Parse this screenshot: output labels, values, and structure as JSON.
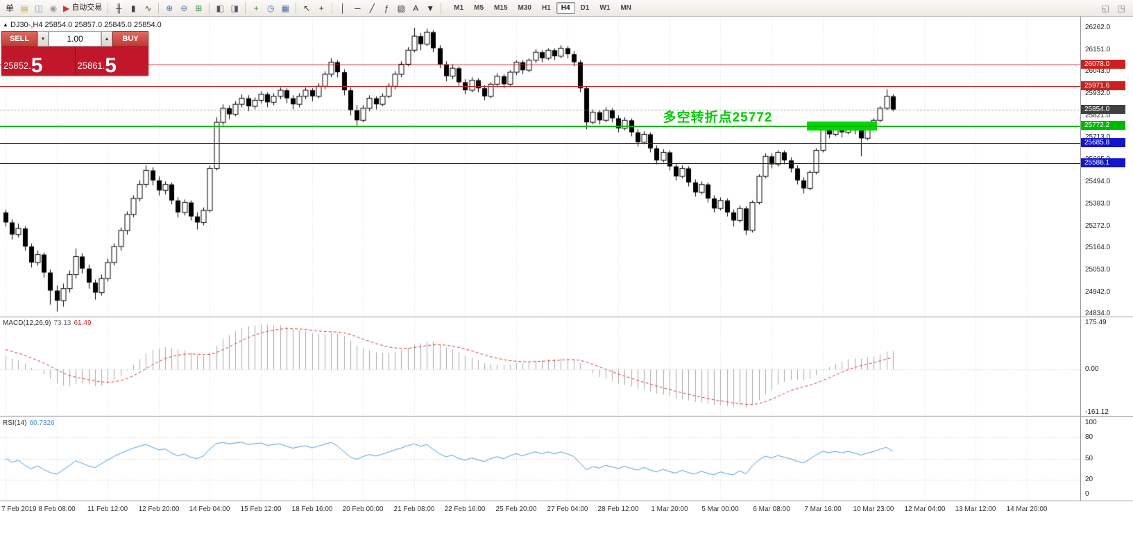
{
  "toolbar": {
    "icons": [
      {
        "name": "new-order-button",
        "glyph": "单",
        "color": "#222"
      },
      {
        "name": "layers-icon",
        "glyph": "▤",
        "color": "#caa53d"
      },
      {
        "name": "profile-icon",
        "glyph": "◫",
        "color": "#6a8fc7"
      },
      {
        "name": "info-icon",
        "glyph": "◉",
        "color": "#9a9a9a"
      },
      {
        "name": "autotrading-button",
        "glyph": "▶",
        "color": "#d03333",
        "label": "自动交易"
      },
      {
        "sep": true
      },
      {
        "name": "bars-chart-icon",
        "glyph": "╫",
        "color": "#444"
      },
      {
        "name": "candles-chart-icon",
        "glyph": "▮",
        "color": "#444"
      },
      {
        "name": "line-chart-icon",
        "glyph": "∿",
        "color": "#444"
      },
      {
        "sep": true
      },
      {
        "name": "zoom-in-icon",
        "glyph": "⊕",
        "color": "#4a6fa5"
      },
      {
        "name": "zoom-out-icon",
        "glyph": "⊖",
        "color": "#4a6fa5"
      },
      {
        "name": "tile-windows-icon",
        "glyph": "⊞",
        "color": "#3f8f3f"
      },
      {
        "sep": true
      },
      {
        "name": "cascade-windows-icon",
        "glyph": "◧",
        "color": "#556"
      },
      {
        "name": "tile-horizontal-icon",
        "glyph": "◨",
        "color": "#556"
      },
      {
        "sep": true
      },
      {
        "name": "new-chart-icon",
        "glyph": "+",
        "color": "#2f8f2f"
      },
      {
        "name": "refresh-icon",
        "glyph": "◷",
        "color": "#4a6fa5"
      },
      {
        "name": "chart-settings-icon",
        "glyph": "▦",
        "color": "#4a6fa5"
      },
      {
        "sep": true
      },
      {
        "name": "cursor-icon",
        "glyph": "↖",
        "color": "#333"
      },
      {
        "name": "crosshair-icon",
        "glyph": "+",
        "color": "#333"
      },
      {
        "sep": true
      },
      {
        "name": "vertical-line-icon",
        "glyph": "│",
        "color": "#333"
      },
      {
        "name": "horizontal-line-icon",
        "glyph": "─",
        "color": "#333"
      },
      {
        "name": "trendline-icon",
        "glyph": "╱",
        "color": "#333"
      },
      {
        "name": "fibonacci-icon",
        "glyph": "ƒ",
        "color": "#333"
      },
      {
        "name": "shapes-icon",
        "glyph": "▧",
        "color": "#333"
      },
      {
        "name": "text-tool-icon",
        "glyph": "A",
        "color": "#333"
      },
      {
        "name": "arrow-tool-icon",
        "glyph": "▼",
        "color": "#333"
      },
      {
        "sep": true
      }
    ],
    "timeframes": [
      "M1",
      "M5",
      "M15",
      "M30",
      "H1",
      "H4",
      "D1",
      "W1",
      "MN"
    ],
    "active_timeframe": "H4",
    "right_icons": [
      {
        "name": "restore-window-icon",
        "glyph": "◱",
        "color": "#777"
      },
      {
        "name": "new-window-icon",
        "glyph": "◳",
        "color": "#777"
      }
    ]
  },
  "chart": {
    "title": "DJ30-,H4 25854.0 25857.0 25845.0 25854.0"
  },
  "trade_panel": {
    "sell_label": "SELL",
    "buy_label": "BUY",
    "volume": "1.00",
    "spin_down": "▼",
    "spin_up": "▲",
    "sell_price_main": "25852.",
    "sell_price_big": "5",
    "buy_price_main": "25861.",
    "buy_price_big": "5"
  },
  "indicators": {
    "macd": {
      "name": "MACD(12,26,9)",
      "value_main": "73.13",
      "value_signal": "61.49"
    },
    "rsi": {
      "name": "RSI(14)",
      "value": "60.7326"
    }
  },
  "annotation": {
    "text": "多空转折点25772",
    "color": "#00cc00"
  },
  "chart_data": {
    "type": "candlestick",
    "symbol": "DJ30-",
    "timeframe": "H4",
    "current_ohlc": {
      "open": 25854.0,
      "high": 25857.0,
      "low": 25845.0,
      "close": 25854.0
    },
    "price_axis": {
      "min": 24834.0,
      "max": 26262.0,
      "ticks": [
        26262.0,
        26151.0,
        26043.0,
        25932.0,
        25821.0,
        25713.0,
        25605.0,
        25494.0,
        25383.0,
        25272.0,
        25164.0,
        25053.0,
        24942.0,
        24834.0
      ]
    },
    "lines": [
      {
        "price": 26078.0,
        "label": "26078.0",
        "color": "#cc2020",
        "kind": "resistance"
      },
      {
        "price": 25971.6,
        "label": "25971.6",
        "color": "#cc2020",
        "kind": "resistance"
      },
      {
        "price": 25854.0,
        "label": "25854.0",
        "color": "#404040",
        "kind": "current",
        "style": "dotted"
      },
      {
        "price": 25772.2,
        "label": "25772.2",
        "color": "#00b800",
        "kind": "pivot"
      },
      {
        "price": 25685.8,
        "label": "25685.8",
        "color": "#1414cc",
        "kind": "support"
      },
      {
        "price": 25586.1,
        "label": "25586.1",
        "color": "#1414cc",
        "kind": "support"
      }
    ],
    "green_box": {
      "from_candle": 126,
      "to_candle": 136.5,
      "top_price": 25794,
      "bottom_price": 25750,
      "color": "#00d800"
    },
    "annotation_anchor": {
      "candle": 103,
      "price": 25868
    },
    "time_labels": [
      "7 Feb 2019",
      "8 Feb 08:00",
      "11 Feb 12:00",
      "12 Feb 20:00",
      "14 Feb 04:00",
      "15 Feb 12:00",
      "18 Feb 16:00",
      "20 Feb 00:00",
      "21 Feb 08:00",
      "22 Feb 16:00",
      "25 Feb 20:00",
      "27 Feb 04:00",
      "28 Feb 12:00",
      "1 Mar 20:00",
      "5 Mar 00:00",
      "6 Mar 08:00",
      "7 Mar 16:00",
      "10 Mar 23:00",
      "12 Mar 04:00",
      "13 Mar 12:00",
      "14 Mar 20:00"
    ],
    "macd_axis": {
      "max": 175.49,
      "zero": 0.0,
      "min": -161.12,
      "labels": [
        "175.49",
        "0.00",
        "-161.12"
      ]
    },
    "rsi_axis": {
      "labels": [
        "100",
        "80",
        "50",
        "20",
        "0"
      ],
      "values": [
        100,
        80,
        50,
        20,
        0
      ],
      "levels": [
        80,
        50,
        20
      ]
    },
    "candles": [
      [
        25340,
        25355,
        25270,
        25290
      ],
      [
        25290,
        25305,
        25205,
        25230
      ],
      [
        25230,
        25285,
        25215,
        25260
      ],
      [
        25260,
        25270,
        25150,
        25170
      ],
      [
        25170,
        25185,
        25065,
        25090
      ],
      [
        25090,
        25150,
        25075,
        25130
      ],
      [
        25130,
        25140,
        25015,
        25040
      ],
      [
        25040,
        25055,
        24880,
        24950
      ],
      [
        24950,
        24975,
        24845,
        24900
      ],
      [
        24900,
        24985,
        24870,
        24960
      ],
      [
        24960,
        25050,
        24940,
        25030
      ],
      [
        25030,
        25160,
        25010,
        25120
      ],
      [
        25120,
        25135,
        25035,
        25060
      ],
      [
        25060,
        25080,
        24960,
        24990
      ],
      [
        24990,
        25005,
        24905,
        24940
      ],
      [
        24940,
        25030,
        24925,
        25010
      ],
      [
        25010,
        25110,
        24995,
        25090
      ],
      [
        25090,
        25185,
        25075,
        25170
      ],
      [
        25170,
        25265,
        25150,
        25250
      ],
      [
        25250,
        25345,
        25230,
        25330
      ],
      [
        25330,
        25425,
        25315,
        25410
      ],
      [
        25410,
        25500,
        25395,
        25480
      ],
      [
        25480,
        25575,
        25465,
        25550
      ],
      [
        25550,
        25565,
        25475,
        25500
      ],
      [
        25500,
        25520,
        25425,
        25450
      ],
      [
        25450,
        25495,
        25430,
        25480
      ],
      [
        25480,
        25490,
        25380,
        25400
      ],
      [
        25400,
        25415,
        25315,
        25340
      ],
      [
        25340,
        25405,
        25325,
        25390
      ],
      [
        25390,
        25400,
        25300,
        25320
      ],
      [
        25320,
        25340,
        25255,
        25290
      ],
      [
        25290,
        25365,
        25275,
        25350
      ],
      [
        25350,
        25575,
        25340,
        25560
      ],
      [
        25560,
        25815,
        25550,
        25790
      ],
      [
        25790,
        25880,
        25775,
        25860
      ],
      [
        25860,
        25875,
        25805,
        25830
      ],
      [
        25830,
        25895,
        25820,
        25880
      ],
      [
        25880,
        25930,
        25865,
        25910
      ],
      [
        25910,
        25925,
        25845,
        25870
      ],
      [
        25870,
        25915,
        25855,
        25900
      ],
      [
        25900,
        25945,
        25885,
        25930
      ],
      [
        25930,
        25940,
        25865,
        25890
      ],
      [
        25890,
        25935,
        25875,
        25920
      ],
      [
        25920,
        25965,
        25905,
        25950
      ],
      [
        25950,
        25960,
        25885,
        25910
      ],
      [
        25910,
        25925,
        25855,
        25880
      ],
      [
        25880,
        25935,
        25865,
        25920
      ],
      [
        25920,
        25965,
        25905,
        25950
      ],
      [
        25950,
        25960,
        25895,
        25920
      ],
      [
        25920,
        25985,
        25910,
        25970
      ],
      [
        25970,
        26045,
        25955,
        26030
      ],
      [
        26030,
        26110,
        26015,
        26090
      ],
      [
        26090,
        26100,
        26015,
        26040
      ],
      [
        26040,
        26055,
        25925,
        25950
      ],
      [
        25950,
        25965,
        25825,
        25850
      ],
      [
        25850,
        25875,
        25775,
        25800
      ],
      [
        25800,
        25875,
        25790,
        25860
      ],
      [
        25860,
        25925,
        25845,
        25910
      ],
      [
        25910,
        25920,
        25855,
        25880
      ],
      [
        25880,
        25935,
        25870,
        25920
      ],
      [
        25920,
        25985,
        25910,
        25970
      ],
      [
        25970,
        26045,
        25955,
        26030
      ],
      [
        26030,
        26095,
        26015,
        26080
      ],
      [
        26080,
        26165,
        26070,
        26150
      ],
      [
        26150,
        26262,
        26140,
        26220
      ],
      [
        26220,
        26235,
        26150,
        26180
      ],
      [
        26180,
        26258,
        26170,
        26240
      ],
      [
        26240,
        26250,
        26140,
        26160
      ],
      [
        26160,
        26175,
        26060,
        26080
      ],
      [
        26080,
        26095,
        25995,
        26020
      ],
      [
        26020,
        26080,
        26005,
        26060
      ],
      [
        26060,
        26070,
        25970,
        25990
      ],
      [
        25990,
        26005,
        25930,
        25950
      ],
      [
        25950,
        26015,
        25940,
        26000
      ],
      [
        26000,
        26010,
        25940,
        25960
      ],
      [
        25960,
        25975,
        25900,
        25920
      ],
      [
        25920,
        25990,
        25910,
        25980
      ],
      [
        25980,
        26035,
        25965,
        26020
      ],
      [
        26020,
        26030,
        25960,
        25980
      ],
      [
        25980,
        26050,
        25970,
        26040
      ],
      [
        26040,
        26100,
        26025,
        26090
      ],
      [
        26090,
        26100,
        26030,
        26050
      ],
      [
        26050,
        26110,
        26040,
        26100
      ],
      [
        26100,
        26155,
        26085,
        26140
      ],
      [
        26140,
        26150,
        26090,
        26110
      ],
      [
        26110,
        26160,
        26100,
        26150
      ],
      [
        26150,
        26160,
        26100,
        26120
      ],
      [
        26120,
        26175,
        26110,
        26160
      ],
      [
        26160,
        26170,
        26110,
        26130
      ],
      [
        26130,
        26145,
        26070,
        26090
      ],
      [
        26090,
        26100,
        25940,
        25960
      ],
      [
        25960,
        25970,
        25755,
        25790
      ],
      [
        25790,
        25855,
        25780,
        25840
      ],
      [
        25840,
        25850,
        25780,
        25800
      ],
      [
        25800,
        25865,
        25790,
        25850
      ],
      [
        25850,
        25860,
        25790,
        25810
      ],
      [
        25810,
        25825,
        25740,
        25760
      ],
      [
        25760,
        25815,
        25750,
        25800
      ],
      [
        25800,
        25810,
        25720,
        25740
      ],
      [
        25740,
        25755,
        25670,
        25690
      ],
      [
        25690,
        25745,
        25680,
        25730
      ],
      [
        25730,
        25740,
        25640,
        25660
      ],
      [
        25660,
        25675,
        25580,
        25600
      ],
      [
        25600,
        25655,
        25590,
        25640
      ],
      [
        25640,
        25650,
        25550,
        25570
      ],
      [
        25570,
        25585,
        25500,
        25520
      ],
      [
        25520,
        25575,
        25510,
        25560
      ],
      [
        25560,
        25570,
        25470,
        25490
      ],
      [
        25490,
        25505,
        25420,
        25440
      ],
      [
        25440,
        25495,
        25430,
        25480
      ],
      [
        25480,
        25490,
        25390,
        25410
      ],
      [
        25410,
        25425,
        25340,
        25360
      ],
      [
        25360,
        25415,
        25350,
        25400
      ],
      [
        25400,
        25410,
        25320,
        25340
      ],
      [
        25340,
        25355,
        25270,
        25300
      ],
      [
        25300,
        25375,
        25290,
        25360
      ],
      [
        25360,
        25370,
        25228,
        25250
      ],
      [
        25250,
        25400,
        25240,
        25390
      ],
      [
        25390,
        25530,
        25380,
        25520
      ],
      [
        25520,
        25635,
        25510,
        25620
      ],
      [
        25620,
        25635,
        25560,
        25580
      ],
      [
        25580,
        25650,
        25570,
        25640
      ],
      [
        25640,
        25650,
        25580,
        25600
      ],
      [
        25600,
        25615,
        25540,
        25560
      ],
      [
        25560,
        25575,
        25480,
        25500
      ],
      [
        25500,
        25515,
        25435,
        25460
      ],
      [
        25460,
        25550,
        25450,
        25540
      ],
      [
        25540,
        25660,
        25530,
        25650
      ],
      [
        25650,
        25770,
        25640,
        25760
      ],
      [
        25760,
        25775,
        25710,
        25730
      ],
      [
        25730,
        25785,
        25720,
        25770
      ],
      [
        25770,
        25780,
        25715,
        25740
      ],
      [
        25740,
        25790,
        25730,
        25780
      ],
      [
        25780,
        25790,
        25730,
        25750
      ],
      [
        25750,
        25765,
        25620,
        25710
      ],
      [
        25710,
        25770,
        25700,
        25760
      ],
      [
        25760,
        25810,
        25750,
        25800
      ],
      [
        25800,
        25870,
        25790,
        25860
      ],
      [
        25860,
        25955,
        25850,
        25920
      ],
      [
        25920,
        25930,
        25845,
        25854
      ]
    ]
  }
}
